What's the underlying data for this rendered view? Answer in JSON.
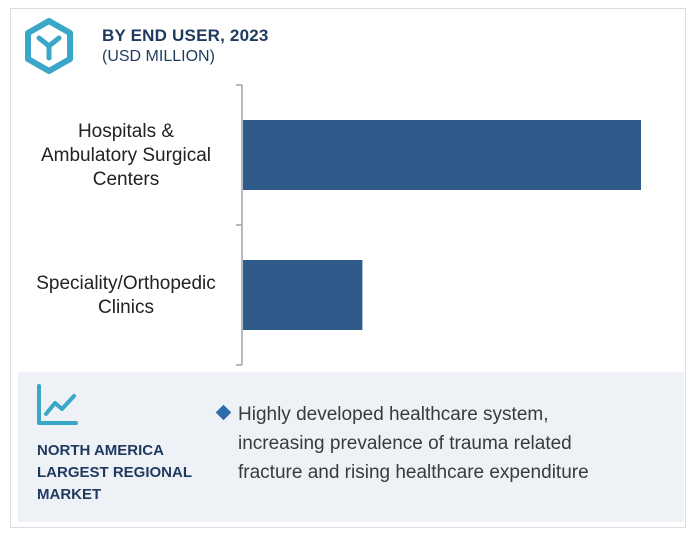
{
  "header": {
    "title": "BY END USER, 2023",
    "subtitle": "(USD MILLION)",
    "logo_icon": "hexagon-y-logo-icon",
    "accent_color": "#3aa7c9"
  },
  "chart_data": {
    "type": "bar",
    "orientation": "horizontal",
    "categories": [
      [
        "Hospitals &",
        "Ambulatory Surgical",
        "Centers"
      ],
      [
        "Speciality/Orthopedic",
        "Clinics"
      ]
    ],
    "values": [
      100,
      30
    ],
    "bar_color": "#2e5b8a",
    "grid": false,
    "legend": "none"
  },
  "region": {
    "icon": "trend-line-icon",
    "lines": [
      "NORTH AMERICA",
      "LARGEST REGIONAL",
      "MARKET"
    ]
  },
  "insight": {
    "lines": [
      "Highly developed healthcare system,",
      "increasing prevalence of trauma related",
      "fracture and rising healthcare expenditure"
    ]
  }
}
